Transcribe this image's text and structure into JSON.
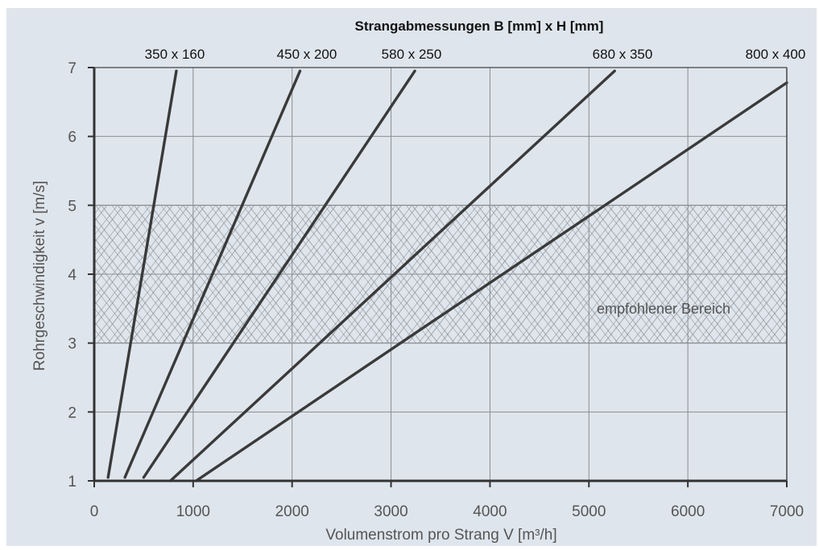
{
  "chart_data": {
    "type": "line",
    "title": "Strangabmessungen B [mm] x H [mm]",
    "xlabel": "Volumenstrom pro Strang V [m³/h]",
    "ylabel": "Rohrgeschwindigkeit v [m/s]",
    "xlim": [
      0,
      7000
    ],
    "ylim": [
      1,
      7
    ],
    "x_ticks": [
      0,
      1000,
      2000,
      3000,
      4000,
      5000,
      6000,
      7000
    ],
    "y_ticks": [
      1,
      2,
      3,
      4,
      5,
      6,
      7
    ],
    "grid": true,
    "series": [
      {
        "name": "350 x 160",
        "x": [
          140,
          830
        ],
        "y": [
          1.05,
          6.95
        ]
      },
      {
        "name": "450 x 200",
        "x": [
          310,
          2080
        ],
        "y": [
          1.05,
          6.95
        ]
      },
      {
        "name": "580 x 250",
        "x": [
          500,
          3240
        ],
        "y": [
          1.05,
          6.95
        ]
      },
      {
        "name": "680 x 350",
        "x": [
          770,
          5260
        ],
        "y": [
          1.0,
          6.95
        ]
      },
      {
        "name": "800 x 400",
        "x": [
          1030,
          7000
        ],
        "y": [
          1.0,
          6.78
        ]
      }
    ],
    "band": {
      "label": "empfohlener Bereich",
      "y": [
        3,
        5
      ],
      "x": [
        0,
        7000
      ]
    },
    "colors": {
      "plot_background": "#dfe5ec",
      "outer_background": "#ffffff",
      "lines": "#3a3a3a",
      "grid": "#8a8e92",
      "hatch": "#7b8086",
      "text": "#555555"
    }
  }
}
